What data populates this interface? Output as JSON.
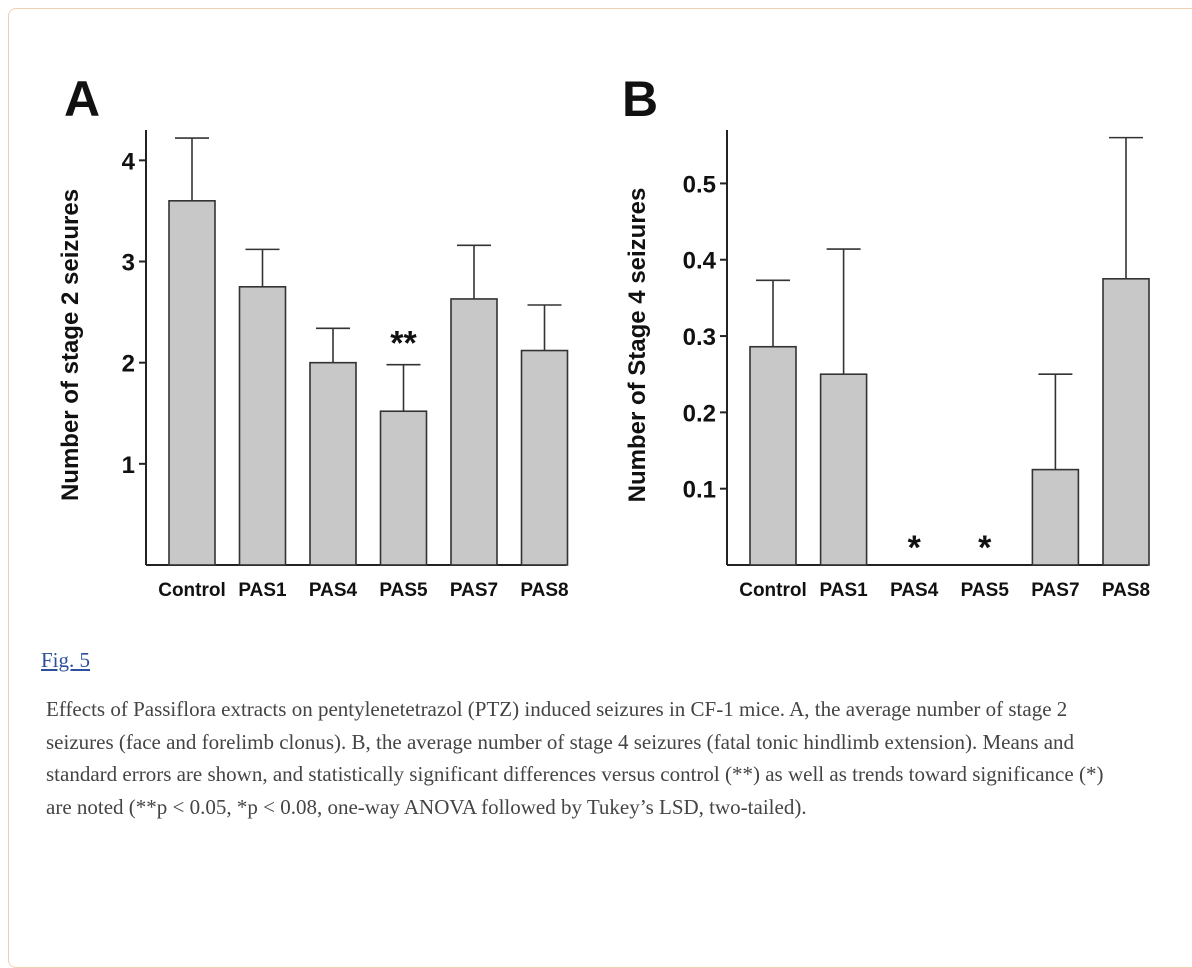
{
  "figure": {
    "link_label": "Fig. 5",
    "caption": "Effects of Passiflora extracts on pentylenetetrazol (PTZ) induced seizures in CF-1 mice. A, the average number of stage 2 seizures (face and forelimb clonus). B, the average number of stage 4 seizures (fatal tonic hindlimb extension). Means and standard errors are shown, and statistically significant differences versus control (**) as well as trends toward significance (*) are noted (**p < 0.05, *p < 0.08, one-way ANOVA followed by Tukey’s LSD, two-tailed)."
  },
  "colors": {
    "bar_fill": "#c8c8c8",
    "bar_stroke": "#333333",
    "axis": "#222222"
  },
  "chart_data": [
    {
      "type": "bar",
      "panel_label": "A",
      "ylabel": "Number of stage 2 seizures",
      "xlabel": "",
      "categories": [
        "Control",
        "PAS1",
        "PAS4",
        "PAS5",
        "PAS7",
        "PAS8"
      ],
      "values": [
        3.6,
        2.75,
        2.0,
        1.52,
        2.63,
        2.12
      ],
      "errors": [
        0.62,
        0.37,
        0.34,
        0.46,
        0.53,
        0.45
      ],
      "annotations": [
        "",
        "",
        "",
        "**",
        "",
        ""
      ],
      "yticks": [
        "1",
        "2",
        "3",
        "4"
      ],
      "ytick_values": [
        1,
        2,
        3,
        4
      ],
      "ylim": [
        0,
        4.3
      ],
      "grid": false
    },
    {
      "type": "bar",
      "panel_label": "B",
      "ylabel": "Number of Stage 4 seizures",
      "xlabel": "",
      "categories": [
        "Control",
        "PAS1",
        "PAS4",
        "PAS5",
        "PAS7",
        "PAS8"
      ],
      "values": [
        0.286,
        0.25,
        0,
        0,
        0.125,
        0.375
      ],
      "errors": [
        0.087,
        0.164,
        0,
        0,
        0.125,
        0.185
      ],
      "annotations": [
        "",
        "",
        "*",
        "*",
        "",
        ""
      ],
      "yticks": [
        "0.1",
        "0.2",
        "0.3",
        "0.4",
        "0.5"
      ],
      "ytick_values": [
        0.1,
        0.2,
        0.3,
        0.4,
        0.5
      ],
      "ylim": [
        0,
        0.57
      ],
      "grid": false
    }
  ]
}
